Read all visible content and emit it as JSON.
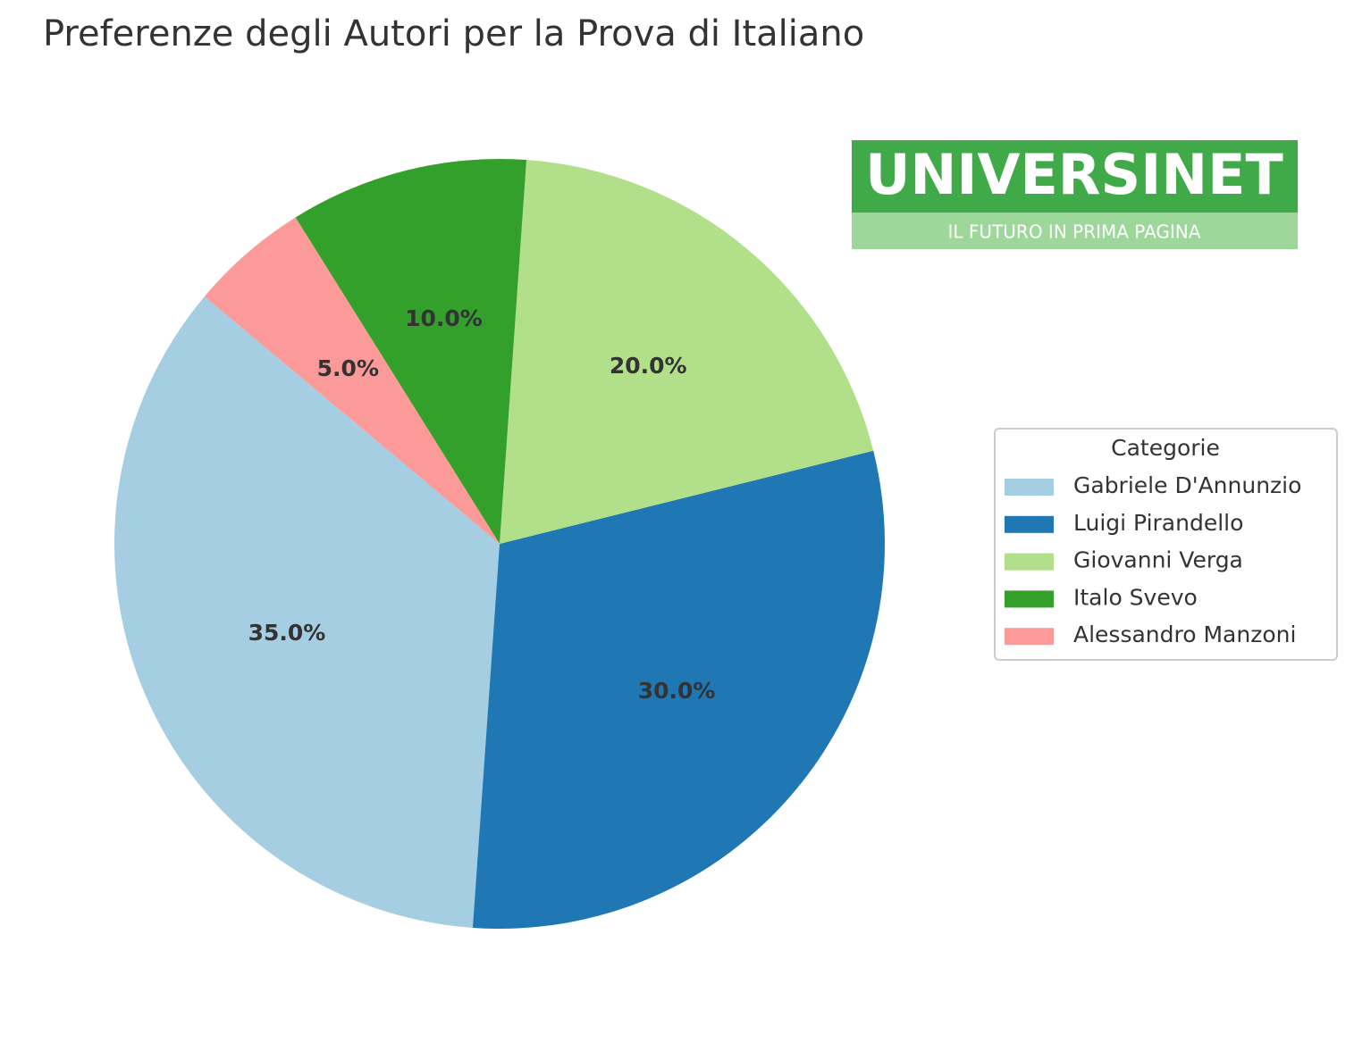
{
  "chart_data": {
    "type": "pie",
    "title": "Preferenze degli Autori per la Prova di Italiano",
    "categories": [
      "Gabriele D'Annunzio",
      "Luigi Pirandello",
      "Giovanni Verga",
      "Italo Svevo",
      "Alessandro Manzoni"
    ],
    "values": [
      35,
      30,
      20,
      10,
      5
    ],
    "value_labels": [
      "35.0%",
      "30.0%",
      "20.0%",
      "10.0%",
      "5.0%"
    ],
    "colors": [
      "#a6cee3",
      "#1f78b4",
      "#b2df8a",
      "#33a02c",
      "#fb9a99"
    ],
    "legend_title": "Categorie",
    "legend": "right"
  },
  "logo": {
    "name": "UNIVERSINET",
    "tagline": "IL FUTURO IN PRIMA PAGINA"
  }
}
